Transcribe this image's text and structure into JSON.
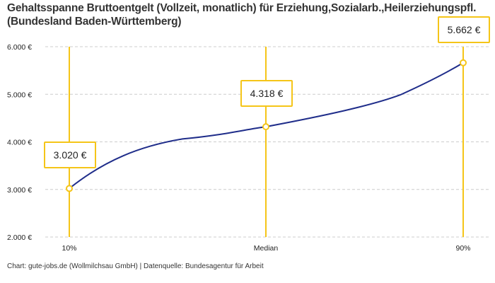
{
  "chart_data": {
    "type": "line",
    "title": "Gehaltsspanne Bruttoentgelt (Vollzeit, monatlich) für Erziehung,Sozialarb.,Heilerziehungspfl. (Bundesland Baden-Württemberg)",
    "categories": [
      "10%",
      "Median",
      "90%"
    ],
    "values": [
      3020,
      4318,
      5662
    ],
    "data_labels": [
      "3.020 €",
      "4.318 €",
      "5.662 €"
    ],
    "y_ticks": [
      2000,
      3000,
      4000,
      5000,
      6000
    ],
    "y_tick_labels": [
      "2.000 €",
      "3.000 €",
      "4.000 €",
      "5.000 €",
      "6.000 €"
    ],
    "ylim": [
      2000,
      6000
    ],
    "grid": true,
    "colors": {
      "line": "#1f2d8a",
      "marker": "#f5c518",
      "grid": "#cccccc"
    }
  },
  "source": "Chart: gute-jobs.de (Wollmilchsau GmbH) | Datenquelle: Bundesagentur für Arbeit"
}
